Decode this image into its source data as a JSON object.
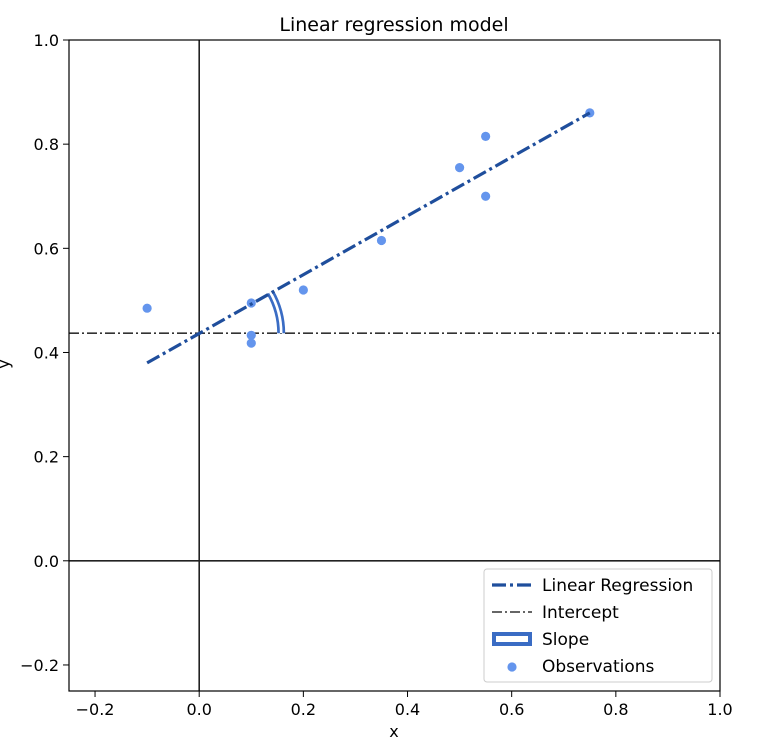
{
  "chart_data": {
    "type": "scatter",
    "title": "Linear regression model",
    "xlabel": "x",
    "ylabel": "y",
    "xlim": [
      -0.25,
      1.0
    ],
    "ylim": [
      -0.25,
      1.0
    ],
    "x_ticks": [
      -0.2,
      0.0,
      0.2,
      0.4,
      0.6,
      0.8,
      1.0
    ],
    "y_ticks": [
      -0.2,
      0.0,
      0.2,
      0.4,
      0.6,
      0.8,
      1.0
    ],
    "x_tick_labels": [
      "−0.2",
      "0.0",
      "0.2",
      "0.4",
      "0.6",
      "0.8",
      "1.0"
    ],
    "y_tick_labels": [
      "−0.2",
      "0.0",
      "0.2",
      "0.4",
      "0.6",
      "0.8",
      "1.0"
    ],
    "grid": false,
    "legend_position": "bottom-right",
    "colors": {
      "regression": "#1f4e9c",
      "intercept": "#333333",
      "slope": "#3a6cc4",
      "observations": "#6495ed"
    },
    "regression_line": {
      "x": [
        -0.1,
        0.75
      ],
      "y": [
        0.38,
        0.86
      ]
    },
    "intercept": 0.437,
    "slope_arc": {
      "angle_from": 0,
      "angle_to": 30
    },
    "observations": {
      "x": [
        -0.1,
        0.1,
        0.1,
        0.1,
        0.2,
        0.35,
        0.5,
        0.55,
        0.55,
        0.75
      ],
      "y": [
        0.485,
        0.495,
        0.433,
        0.418,
        0.52,
        0.615,
        0.755,
        0.815,
        0.7,
        0.86
      ]
    },
    "legend": [
      {
        "label": "Linear Regression",
        "kind": "regression"
      },
      {
        "label": "Intercept",
        "kind": "intercept"
      },
      {
        "label": "Slope",
        "kind": "slope"
      },
      {
        "label": "Observations",
        "kind": "observations"
      }
    ]
  }
}
